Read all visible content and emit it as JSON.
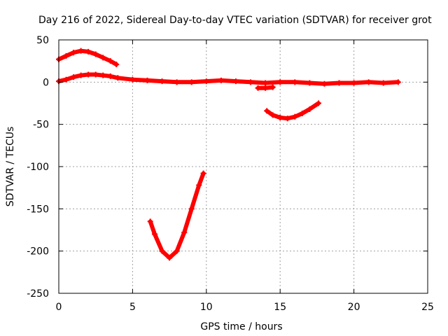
{
  "chart_data": {
    "type": "scatter",
    "title": "Day 216 of 2022, Sidereal Day-to-day VTEC variation (SDTVAR) for receiver grot",
    "xlabel": "GPS time / hours",
    "ylabel": "SDTVAR / TECUs",
    "xlim": [
      0,
      25
    ],
    "ylim": [
      -250,
      50
    ],
    "xticks": [
      "0",
      "5",
      "10",
      "15",
      "20",
      "25"
    ],
    "yticks": [
      "50",
      "0",
      "-50",
      "-100",
      "-150",
      "-200",
      "-250"
    ],
    "grid": true,
    "marker_color": "#ff0000",
    "series": [
      {
        "name": "arc-upper-early",
        "x": [
          0,
          0.5,
          1.0,
          1.5,
          2.0,
          2.5,
          3.0,
          3.5,
          3.9
        ],
        "y": [
          27,
          31,
          35,
          37,
          36,
          33,
          29,
          25,
          21
        ]
      },
      {
        "name": "baseline-near-zero",
        "x": [
          0,
          0.5,
          1,
          1.5,
          2,
          2.5,
          3,
          3.5,
          4,
          5,
          6,
          7,
          8,
          9,
          10,
          11,
          12,
          13,
          14,
          15,
          16,
          17,
          18,
          19,
          20,
          21,
          22,
          23
        ],
        "y": [
          1,
          3,
          6,
          8,
          9,
          9,
          8,
          7,
          5,
          3,
          2,
          1,
          0,
          0,
          1,
          2,
          1,
          0,
          -1,
          0,
          0,
          -1,
          -2,
          -1,
          -1,
          0,
          -1,
          0
        ]
      },
      {
        "name": "arc-v-shape",
        "x": [
          6.2,
          6.5,
          7.0,
          7.5,
          8.0,
          8.5,
          9.0,
          9.5,
          9.8
        ],
        "y": [
          -165,
          -180,
          -200,
          -208,
          -200,
          -178,
          -150,
          -122,
          -108
        ]
      },
      {
        "name": "arc-negative-mid",
        "x": [
          14.1,
          14.5,
          15.0,
          15.5,
          16.0,
          16.5,
          17.0,
          17.6
        ],
        "y": [
          -34,
          -39,
          -42,
          -43,
          -41,
          -37,
          -32,
          -25
        ]
      },
      {
        "name": "dip-segment",
        "x": [
          13.5,
          14.0,
          14.5
        ],
        "y": [
          -7,
          -7,
          -6
        ]
      }
    ]
  }
}
